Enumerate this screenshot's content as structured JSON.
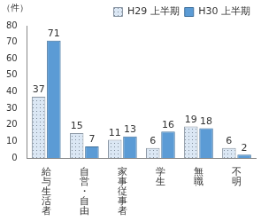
{
  "chart_data": {
    "type": "bar",
    "y_label": "（件）",
    "categories": [
      "給与生活者",
      "自営・自由",
      "家事従事者",
      "学生",
      "無職",
      "不明"
    ],
    "series": [
      {
        "name": "H29 上半期",
        "color": "#dbe7f4",
        "values": [
          37,
          15,
          11,
          6,
          19,
          6
        ]
      },
      {
        "name": "H30 上半期",
        "color": "#5b9bd5",
        "values": [
          71,
          7,
          13,
          16,
          18,
          2
        ]
      }
    ],
    "ylim": [
      0,
      80
    ],
    "yticks": [
      0,
      10,
      20,
      30,
      40,
      50,
      60,
      70,
      80
    ],
    "grid": false,
    "legend": "upper right",
    "data_labels": true
  }
}
